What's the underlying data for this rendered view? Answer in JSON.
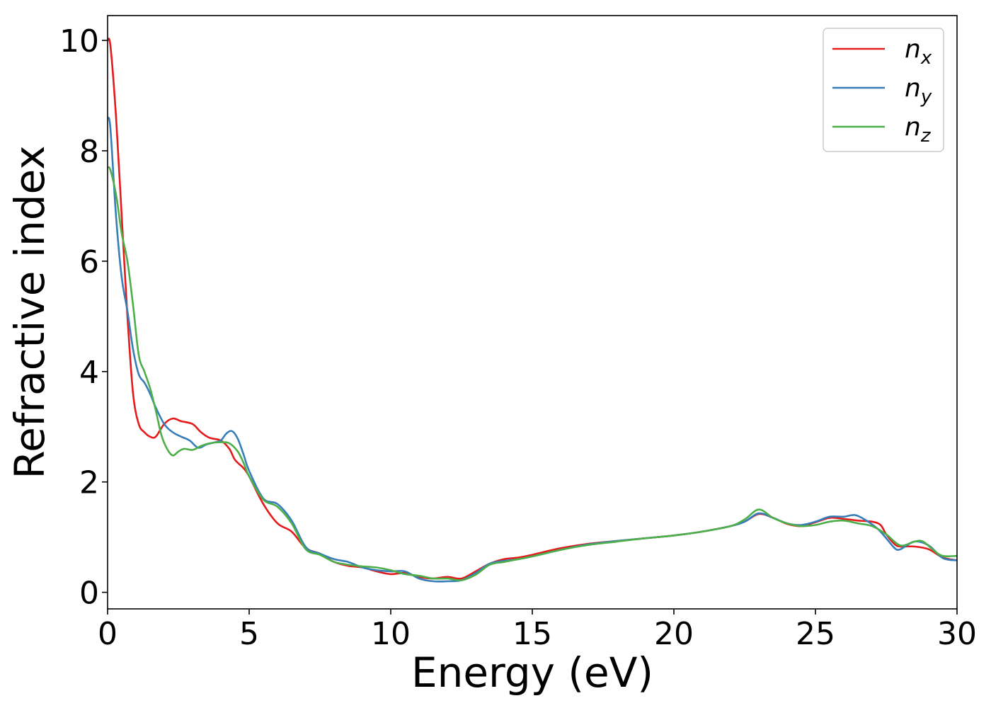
{
  "chart_data": {
    "type": "line",
    "xlabel": "Energy (eV)",
    "ylabel": "Refractive index",
    "xlim": [
      0,
      30
    ],
    "ylim": [
      -0.3,
      10.45
    ],
    "xticks": [
      "0",
      "5",
      "10",
      "15",
      "20",
      "25",
      "30"
    ],
    "yticks": [
      "0",
      "2",
      "4",
      "6",
      "8",
      "10"
    ],
    "grid": false,
    "legend_position": "top-right",
    "series": [
      {
        "name": "n_x",
        "label_main": "n",
        "label_sub": "x",
        "color": "#e41a1c",
        "points": [
          [
            0,
            10.0
          ],
          [
            0.1,
            9.9
          ],
          [
            0.3,
            8.6
          ],
          [
            0.5,
            6.8
          ],
          [
            0.7,
            5.0
          ],
          [
            0.9,
            3.6
          ],
          [
            1.1,
            3.05
          ],
          [
            1.3,
            2.9
          ],
          [
            1.5,
            2.82
          ],
          [
            1.7,
            2.82
          ],
          [
            2.0,
            3.05
          ],
          [
            2.3,
            3.15
          ],
          [
            2.6,
            3.1
          ],
          [
            3.0,
            3.05
          ],
          [
            3.3,
            2.9
          ],
          [
            3.6,
            2.8
          ],
          [
            4.0,
            2.75
          ],
          [
            4.3,
            2.6
          ],
          [
            4.5,
            2.4
          ],
          [
            4.8,
            2.25
          ],
          [
            5.0,
            2.1
          ],
          [
            5.5,
            1.6
          ],
          [
            6.0,
            1.25
          ],
          [
            6.5,
            1.1
          ],
          [
            7.0,
            0.8
          ],
          [
            7.5,
            0.7
          ],
          [
            8.0,
            0.55
          ],
          [
            8.5,
            0.48
          ],
          [
            9.0,
            0.45
          ],
          [
            9.5,
            0.38
          ],
          [
            10.0,
            0.33
          ],
          [
            10.5,
            0.35
          ],
          [
            11.0,
            0.28
          ],
          [
            11.5,
            0.25
          ],
          [
            12.0,
            0.28
          ],
          [
            12.5,
            0.25
          ],
          [
            13.0,
            0.38
          ],
          [
            13.5,
            0.52
          ],
          [
            14.0,
            0.6
          ],
          [
            14.5,
            0.63
          ],
          [
            15.0,
            0.68
          ],
          [
            16.0,
            0.8
          ],
          [
            17.0,
            0.88
          ],
          [
            18.0,
            0.93
          ],
          [
            19.0,
            0.98
          ],
          [
            20.0,
            1.03
          ],
          [
            21.0,
            1.1
          ],
          [
            22.0,
            1.2
          ],
          [
            22.5,
            1.28
          ],
          [
            23.0,
            1.42
          ],
          [
            23.5,
            1.35
          ],
          [
            24.0,
            1.24
          ],
          [
            24.5,
            1.2
          ],
          [
            25.0,
            1.27
          ],
          [
            25.5,
            1.35
          ],
          [
            26.0,
            1.33
          ],
          [
            26.5,
            1.3
          ],
          [
            27.0,
            1.28
          ],
          [
            27.3,
            1.22
          ],
          [
            27.5,
            1.05
          ],
          [
            27.8,
            0.87
          ],
          [
            28.0,
            0.83
          ],
          [
            28.5,
            0.83
          ],
          [
            29.0,
            0.78
          ],
          [
            29.5,
            0.63
          ],
          [
            30.0,
            0.58
          ]
        ]
      },
      {
        "name": "n_y",
        "label_main": "n",
        "label_sub": "y",
        "color": "#377eb8",
        "points": [
          [
            0,
            8.6
          ],
          [
            0.1,
            8.4
          ],
          [
            0.3,
            6.8
          ],
          [
            0.5,
            5.7
          ],
          [
            0.7,
            5.1
          ],
          [
            0.9,
            4.4
          ],
          [
            1.1,
            3.95
          ],
          [
            1.3,
            3.8
          ],
          [
            1.5,
            3.6
          ],
          [
            1.7,
            3.35
          ],
          [
            2.0,
            3.05
          ],
          [
            2.3,
            2.9
          ],
          [
            2.6,
            2.82
          ],
          [
            2.9,
            2.75
          ],
          [
            3.2,
            2.62
          ],
          [
            3.5,
            2.68
          ],
          [
            3.8,
            2.72
          ],
          [
            4.0,
            2.75
          ],
          [
            4.2,
            2.88
          ],
          [
            4.4,
            2.92
          ],
          [
            4.6,
            2.78
          ],
          [
            4.8,
            2.5
          ],
          [
            5.0,
            2.2
          ],
          [
            5.5,
            1.7
          ],
          [
            6.0,
            1.6
          ],
          [
            6.5,
            1.3
          ],
          [
            7.0,
            0.82
          ],
          [
            7.5,
            0.7
          ],
          [
            8.0,
            0.6
          ],
          [
            8.5,
            0.55
          ],
          [
            9.0,
            0.45
          ],
          [
            9.5,
            0.4
          ],
          [
            10.0,
            0.38
          ],
          [
            10.5,
            0.38
          ],
          [
            11.0,
            0.25
          ],
          [
            11.5,
            0.2
          ],
          [
            12.0,
            0.2
          ],
          [
            12.5,
            0.22
          ],
          [
            13.0,
            0.35
          ],
          [
            13.5,
            0.52
          ],
          [
            14.0,
            0.57
          ],
          [
            14.5,
            0.6
          ],
          [
            15.0,
            0.65
          ],
          [
            16.0,
            0.77
          ],
          [
            17.0,
            0.87
          ],
          [
            18.0,
            0.93
          ],
          [
            19.0,
            0.98
          ],
          [
            20.0,
            1.03
          ],
          [
            21.0,
            1.1
          ],
          [
            22.0,
            1.2
          ],
          [
            22.5,
            1.28
          ],
          [
            23.0,
            1.43
          ],
          [
            23.5,
            1.35
          ],
          [
            24.0,
            1.25
          ],
          [
            24.5,
            1.22
          ],
          [
            25.0,
            1.28
          ],
          [
            25.5,
            1.37
          ],
          [
            26.0,
            1.37
          ],
          [
            26.4,
            1.4
          ],
          [
            26.8,
            1.3
          ],
          [
            27.2,
            1.15
          ],
          [
            27.5,
            0.98
          ],
          [
            27.8,
            0.8
          ],
          [
            28.0,
            0.78
          ],
          [
            28.5,
            0.92
          ],
          [
            29.0,
            0.85
          ],
          [
            29.5,
            0.62
          ],
          [
            30.0,
            0.58
          ]
        ]
      },
      {
        "name": "n_z",
        "label_main": "n",
        "label_sub": "z",
        "color": "#4daf4a",
        "points": [
          [
            0,
            7.7
          ],
          [
            0.1,
            7.65
          ],
          [
            0.3,
            7.2
          ],
          [
            0.5,
            6.5
          ],
          [
            0.7,
            6.0
          ],
          [
            0.9,
            5.2
          ],
          [
            1.1,
            4.3
          ],
          [
            1.3,
            4.0
          ],
          [
            1.5,
            3.7
          ],
          [
            1.7,
            3.3
          ],
          [
            1.9,
            2.85
          ],
          [
            2.1,
            2.6
          ],
          [
            2.3,
            2.48
          ],
          [
            2.5,
            2.55
          ],
          [
            2.7,
            2.6
          ],
          [
            3.0,
            2.58
          ],
          [
            3.3,
            2.65
          ],
          [
            3.6,
            2.7
          ],
          [
            4.0,
            2.72
          ],
          [
            4.3,
            2.7
          ],
          [
            4.6,
            2.55
          ],
          [
            4.8,
            2.35
          ],
          [
            5.0,
            2.1
          ],
          [
            5.5,
            1.68
          ],
          [
            6.0,
            1.55
          ],
          [
            6.5,
            1.25
          ],
          [
            7.0,
            0.78
          ],
          [
            7.5,
            0.68
          ],
          [
            8.0,
            0.55
          ],
          [
            8.5,
            0.5
          ],
          [
            9.0,
            0.47
          ],
          [
            9.5,
            0.45
          ],
          [
            10.0,
            0.4
          ],
          [
            10.5,
            0.33
          ],
          [
            11.0,
            0.3
          ],
          [
            11.5,
            0.25
          ],
          [
            12.0,
            0.25
          ],
          [
            12.5,
            0.22
          ],
          [
            13.0,
            0.32
          ],
          [
            13.5,
            0.5
          ],
          [
            14.0,
            0.55
          ],
          [
            14.5,
            0.6
          ],
          [
            15.0,
            0.65
          ],
          [
            16.0,
            0.77
          ],
          [
            17.0,
            0.86
          ],
          [
            18.0,
            0.92
          ],
          [
            19.0,
            0.98
          ],
          [
            20.0,
            1.03
          ],
          [
            21.0,
            1.1
          ],
          [
            22.0,
            1.2
          ],
          [
            22.5,
            1.32
          ],
          [
            23.0,
            1.5
          ],
          [
            23.5,
            1.35
          ],
          [
            24.0,
            1.25
          ],
          [
            24.5,
            1.2
          ],
          [
            25.0,
            1.22
          ],
          [
            25.5,
            1.28
          ],
          [
            26.0,
            1.3
          ],
          [
            26.5,
            1.25
          ],
          [
            27.0,
            1.2
          ],
          [
            27.5,
            1.05
          ],
          [
            28.0,
            0.85
          ],
          [
            28.5,
            0.92
          ],
          [
            28.8,
            0.92
          ],
          [
            29.2,
            0.75
          ],
          [
            29.5,
            0.66
          ],
          [
            30.0,
            0.66
          ]
        ]
      }
    ]
  }
}
